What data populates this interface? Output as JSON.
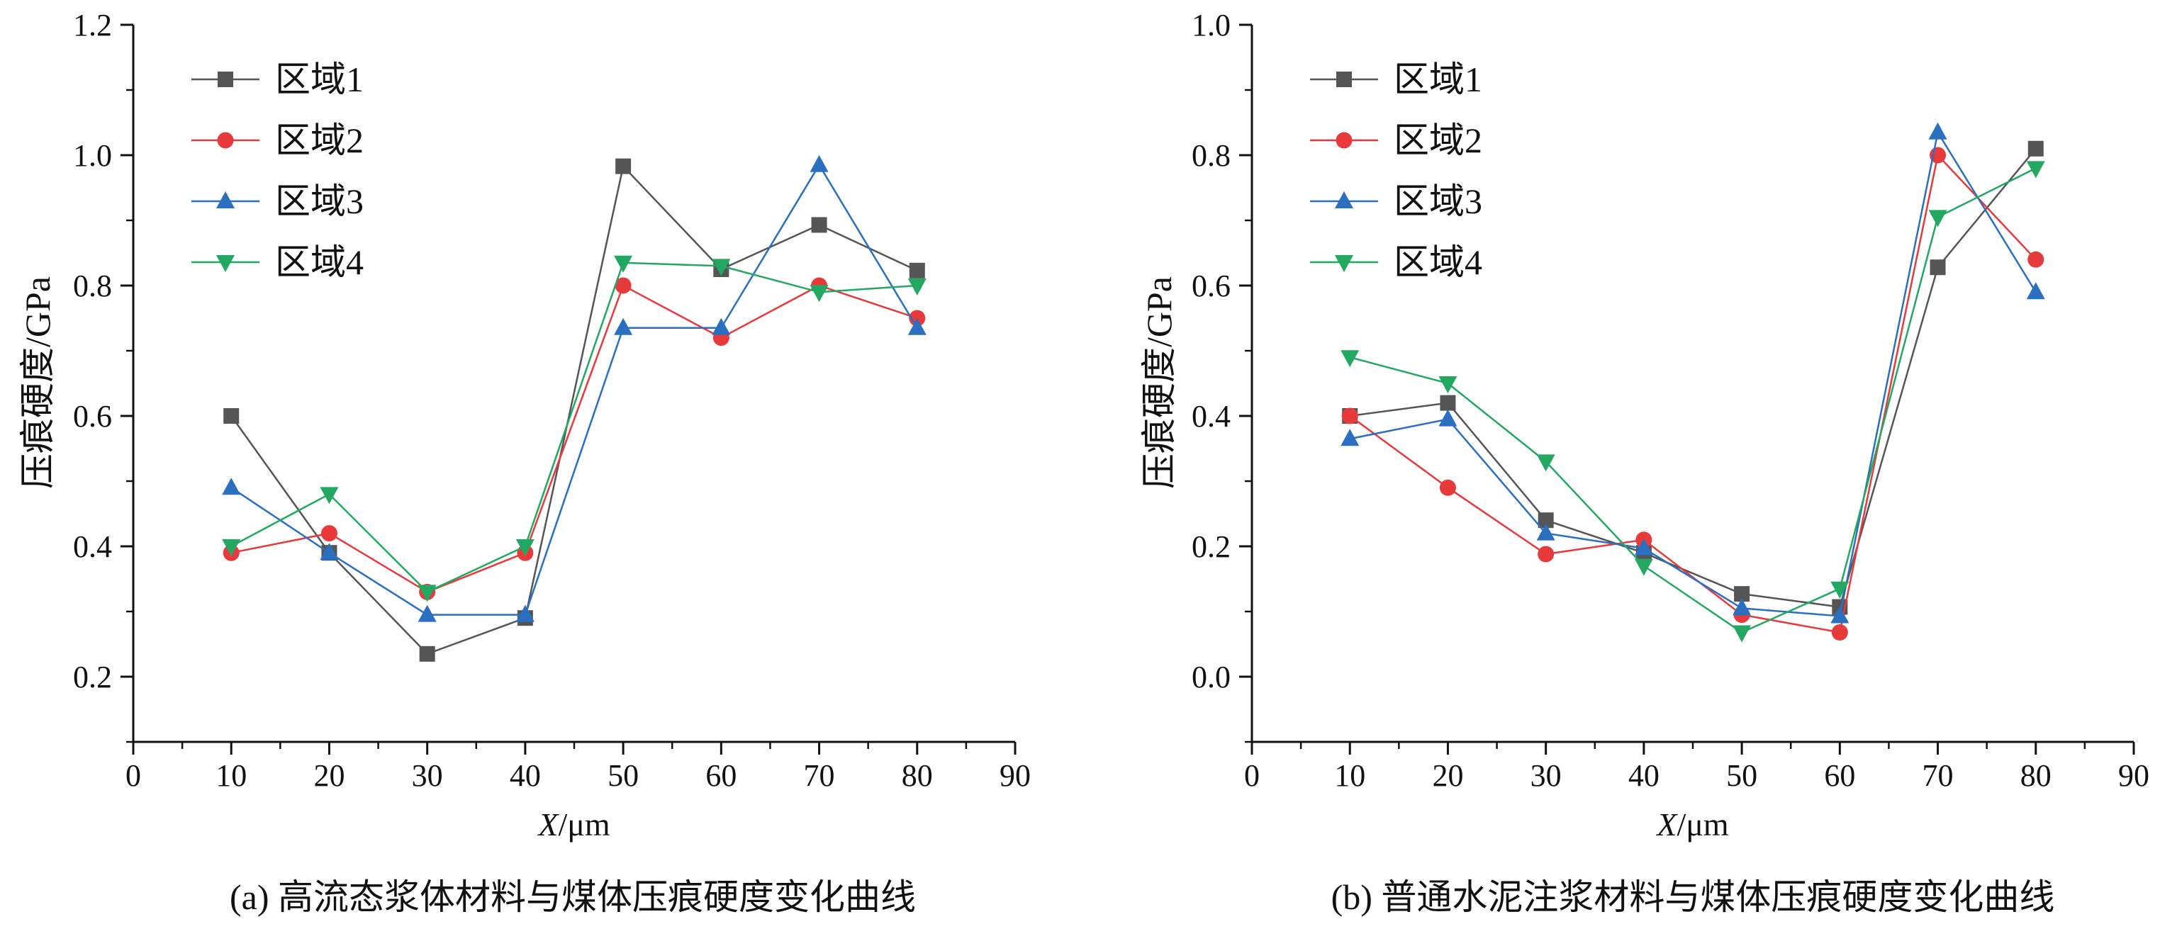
{
  "chart_data": [
    {
      "type": "line",
      "ylabel": "压痕硬度/GPa",
      "xlabel_italic": "X",
      "xlabel_unit": "/μm",
      "caption": "(a) 高流态浆体材料与煤体压痕硬度变化曲线",
      "xlim": [
        0,
        90
      ],
      "ylim": [
        0.1,
        1.2
      ],
      "xticks": [
        "0",
        "10",
        "20",
        "30",
        "40",
        "50",
        "60",
        "70",
        "80",
        "90"
      ],
      "yticks": [
        "0.2",
        "0.4",
        "0.6",
        "0.8",
        "1.0",
        "1.2"
      ],
      "x": [
        10,
        20,
        30,
        40,
        50,
        60,
        70,
        80
      ],
      "legend_position": "top-left",
      "grid": false,
      "series": [
        {
          "name": "区域1",
          "color": "#555555",
          "marker": "square",
          "values": [
            0.6,
            0.39,
            0.235,
            0.29,
            0.983,
            0.825,
            0.893,
            0.823
          ]
        },
        {
          "name": "区域2",
          "color": "#e8393b",
          "marker": "circle",
          "values": [
            0.39,
            0.42,
            0.33,
            0.39,
            0.8,
            0.72,
            0.8,
            0.75
          ]
        },
        {
          "name": "区域3",
          "color": "#2a6fc0",
          "marker": "triangle-up",
          "values": [
            0.49,
            0.39,
            0.295,
            0.295,
            0.735,
            0.735,
            0.985,
            0.735
          ]
        },
        {
          "name": "区域4",
          "color": "#23a862",
          "marker": "triangle-down",
          "values": [
            0.4,
            0.48,
            0.33,
            0.4,
            0.835,
            0.83,
            0.79,
            0.8
          ]
        }
      ]
    },
    {
      "type": "line",
      "ylabel": "压痕硬度/GPa",
      "xlabel_italic": "X",
      "xlabel_unit": "/μm",
      "caption": "(b) 普通水泥注浆材料与煤体压痕硬度变化曲线",
      "xlim": [
        0,
        90
      ],
      "ylim": [
        -0.1,
        1.0
      ],
      "xticks": [
        "0",
        "10",
        "20",
        "30",
        "40",
        "50",
        "60",
        "70",
        "80",
        "90"
      ],
      "yticks": [
        "0.0",
        "0.2",
        "0.4",
        "0.6",
        "0.8",
        "1.0"
      ],
      "x": [
        10,
        20,
        30,
        40,
        50,
        60,
        70,
        80
      ],
      "legend_position": "top-left",
      "grid": false,
      "series": [
        {
          "name": "区域1",
          "color": "#555555",
          "marker": "square",
          "values": [
            0.4,
            0.42,
            0.24,
            0.19,
            0.127,
            0.107,
            0.628,
            0.81
          ]
        },
        {
          "name": "区域2",
          "color": "#e8393b",
          "marker": "circle",
          "values": [
            0.4,
            0.29,
            0.188,
            0.21,
            0.095,
            0.068,
            0.8,
            0.64
          ]
        },
        {
          "name": "区域3",
          "color": "#2a6fc0",
          "marker": "triangle-up",
          "values": [
            0.365,
            0.395,
            0.22,
            0.197,
            0.105,
            0.093,
            0.835,
            0.59
          ]
        },
        {
          "name": "区域4",
          "color": "#23a862",
          "marker": "triangle-down",
          "values": [
            0.49,
            0.45,
            0.33,
            0.17,
            0.068,
            0.135,
            0.705,
            0.78
          ]
        }
      ]
    }
  ]
}
